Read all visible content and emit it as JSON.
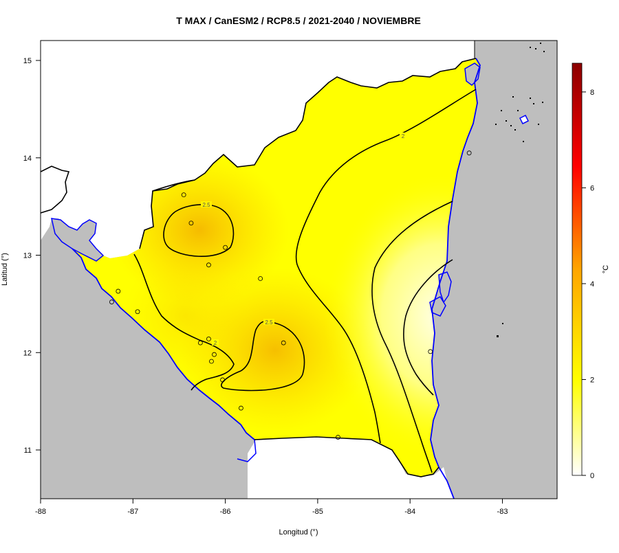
{
  "map": {
    "title": "T MAX / CanESM2 / RCP8.5 / 2021-2040 / NOVIEMBRE",
    "xlabel": "Longitud (°)",
    "ylabel": "Latitud (°)",
    "lon_range": [
      -88,
      -82.5
    ],
    "lat_range": [
      10.5,
      15.2
    ],
    "x_ticks": [
      "-88",
      "-87",
      "-86",
      "-85",
      "-84",
      "-83"
    ],
    "y_ticks": [
      "11",
      "12",
      "13",
      "14",
      "15"
    ],
    "colors": {
      "ocean_land_mask": "#bebebe",
      "country_border": "#000000",
      "coast_lakes": "#0000ff",
      "field_low": "#ffffff",
      "field_mid": "#ffff00",
      "field_high": "#8b0000"
    },
    "contour_labels": [
      "2.5",
      "2.5",
      "2",
      "2",
      "2"
    ],
    "stations_count": 20
  },
  "colorbar": {
    "unit": "°C",
    "ticks": [
      "0",
      "2",
      "4",
      "6",
      "8"
    ],
    "range": [
      0,
      8.6
    ]
  }
}
